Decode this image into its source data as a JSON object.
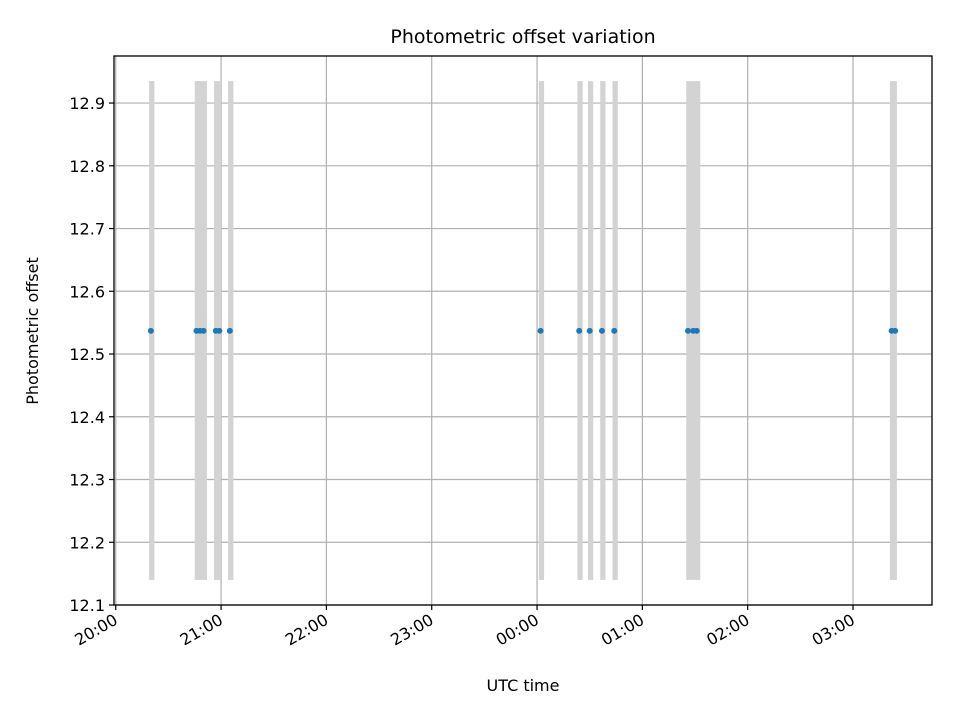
{
  "chart_data": {
    "type": "scatter",
    "title": "Photometric offset variation",
    "xlabel": "UTC time",
    "ylabel": "Photometric offset",
    "grid": true,
    "xlim": [
      "19:59",
      "03:45"
    ],
    "ylim": [
      12.1,
      12.975
    ],
    "x_ticks": [
      "20:00",
      "21:00",
      "22:00",
      "23:00",
      "00:00",
      "01:00",
      "02:00",
      "03:00"
    ],
    "y_ticks": [
      "12.1",
      "12.2",
      "12.3",
      "12.4",
      "12.5",
      "12.6",
      "12.7",
      "12.8",
      "12.9"
    ],
    "band_range": [
      12.14,
      12.935
    ],
    "band_color": "#d3d3d3",
    "point_color": "#1f77b4",
    "bands": [
      [
        "20:19",
        "20:22"
      ],
      [
        "20:45",
        "20:52"
      ],
      [
        "20:56",
        "21:00"
      ],
      [
        "21:04",
        "21:07"
      ],
      [
        "00:01",
        "00:04"
      ],
      [
        "00:23",
        "00:26"
      ],
      [
        "00:29",
        "00:32"
      ],
      [
        "00:36",
        "00:39"
      ],
      [
        "00:43",
        "00:46"
      ],
      [
        "01:25",
        "01:33"
      ],
      [
        "03:21",
        "03:25"
      ]
    ],
    "points": [
      {
        "x": "20:20",
        "y": 12.537
      },
      {
        "x": "20:46",
        "y": 12.537
      },
      {
        "x": "20:48",
        "y": 12.537
      },
      {
        "x": "20:50",
        "y": 12.537
      },
      {
        "x": "20:57",
        "y": 12.537
      },
      {
        "x": "20:59",
        "y": 12.537
      },
      {
        "x": "21:05",
        "y": 12.537
      },
      {
        "x": "00:02",
        "y": 12.537
      },
      {
        "x": "00:24",
        "y": 12.537
      },
      {
        "x": "00:30",
        "y": 12.537
      },
      {
        "x": "00:37",
        "y": 12.537
      },
      {
        "x": "00:44",
        "y": 12.537
      },
      {
        "x": "01:26",
        "y": 12.537
      },
      {
        "x": "01:29",
        "y": 12.537
      },
      {
        "x": "01:31",
        "y": 12.537
      },
      {
        "x": "03:22",
        "y": 12.537
      },
      {
        "x": "03:24",
        "y": 12.537
      }
    ]
  }
}
